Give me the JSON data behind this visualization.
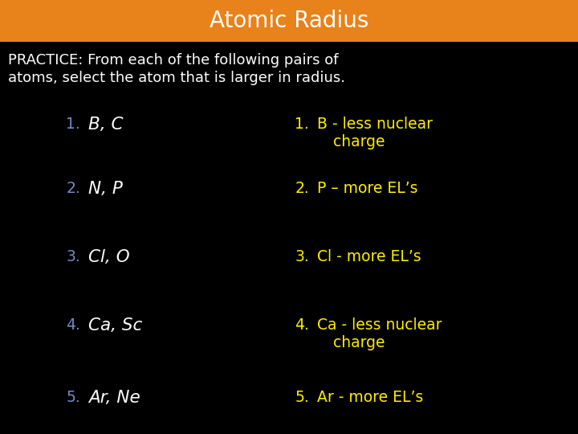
{
  "title": "Atomic Radius",
  "title_color": "white",
  "title_bg_color": "#E8821A",
  "background_color": "#000000",
  "intro_line1": "PRACTICE: From each of the following pairs of",
  "intro_line2": "atoms, select the atom that is larger in radius.",
  "intro_color": "white",
  "num_color": "#7788CC",
  "q_text_color": "white",
  "ans_color": "#FFEE00",
  "questions": [
    "B, C",
    "N, P",
    "Cl, O",
    "Ca, Sc",
    "Ar, Ne"
  ],
  "q_nums": [
    "1.",
    "2.",
    "3.",
    "4.",
    "5."
  ],
  "answers_line1": [
    "B - less nuclear",
    "P – more EL’s",
    "Cl - more EL’s",
    "Ca - less nuclear",
    "Ar - more EL’s"
  ],
  "answers_line2": [
    "charge",
    null,
    null,
    "charge",
    null
  ],
  "a_nums": [
    "1.",
    "2.",
    "3.",
    "4.",
    "5."
  ],
  "figsize": [
    7.2,
    5.4
  ],
  "dpi": 100
}
